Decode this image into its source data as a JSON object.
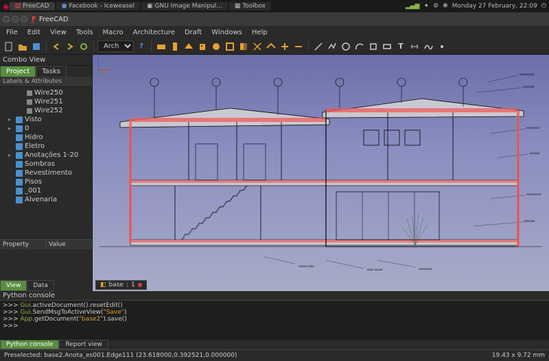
{
  "panel": {
    "tasks": [
      {
        "label": "FreeCAD",
        "active": true
      },
      {
        "label": "Facebook - Iceweasel",
        "active": false
      },
      {
        "label": "GNU Image Manipul...",
        "active": false
      },
      {
        "label": "Toolbox",
        "active": false
      }
    ],
    "clock": "Monday 27 February, 22:09"
  },
  "window": {
    "title": "FreeCAD"
  },
  "menubar": [
    "File",
    "Edit",
    "View",
    "Tools",
    "Macro",
    "Architecture",
    "Draft",
    "Windows",
    "Help"
  ],
  "toolbar": {
    "workbench": "Arch",
    "icon_colors": {
      "arch_primary": "#e8a030",
      "draft_primary": "#8a8a8a",
      "nav_primary": "#4a90d0"
    }
  },
  "combo_view": {
    "title": "Combo View",
    "tabs": [
      "Project",
      "Tasks"
    ],
    "active_tab": 0,
    "header": "Labels & Attributes",
    "tree": [
      {
        "label": "Wire250",
        "lvl": 2,
        "kind": "wire"
      },
      {
        "label": "Wire251",
        "lvl": 2,
        "kind": "wire"
      },
      {
        "label": "Wire252",
        "lvl": 2,
        "kind": "wire"
      },
      {
        "label": "Visto",
        "lvl": 1,
        "kind": "folder",
        "expand": true
      },
      {
        "label": "0",
        "lvl": 1,
        "kind": "folder",
        "expand": true
      },
      {
        "label": "Hidro",
        "lvl": 1,
        "kind": "folder"
      },
      {
        "label": "Eletro",
        "lvl": 1,
        "kind": "folder"
      },
      {
        "label": "Anotações 1-20",
        "lvl": 1,
        "kind": "folder",
        "expand": true
      },
      {
        "label": "Sombras",
        "lvl": 1,
        "kind": "folder"
      },
      {
        "label": "Revestimento",
        "lvl": 1,
        "kind": "folder"
      },
      {
        "label": "Pisos",
        "lvl": 1,
        "kind": "folder"
      },
      {
        "label": "_001",
        "lvl": 1,
        "kind": "folder"
      },
      {
        "label": "Alvenaria",
        "lvl": 1,
        "kind": "folder"
      }
    ],
    "property_cols": [
      "Property",
      "Value"
    ],
    "bottom_tabs": [
      "View",
      "Data"
    ],
    "active_bottom_tab": 0
  },
  "viewport": {
    "bg_top": "#6b6fa8",
    "bg_bottom": "#a8acc8",
    "section_line_color": "#000000",
    "highlight_color": "#f06060",
    "wall_fill": "#b8b8c8",
    "axis_x": "#d04040",
    "axis_y": "#40a040",
    "axis_z": "#4060d0",
    "doc_tab": {
      "label": "base",
      "count": "1"
    }
  },
  "python": {
    "title": "Python console",
    "lines": [
      ">>> Gui.activeDocument().resetEdit()",
      ">>> Gui.SendMsgToActiveView(\"Save\")",
      ">>> App.getDocument(\"base2\").save()",
      ">>> "
    ],
    "bottom_tabs": [
      "Python console",
      "Report view"
    ],
    "active_bottom_tab": 0
  },
  "statusbar": {
    "preselect": "Preselected: base2.Anota_es001.Edge111 (23.618000,0.392521,0.000000)",
    "coords": "19.43 x 9.72 mm"
  }
}
